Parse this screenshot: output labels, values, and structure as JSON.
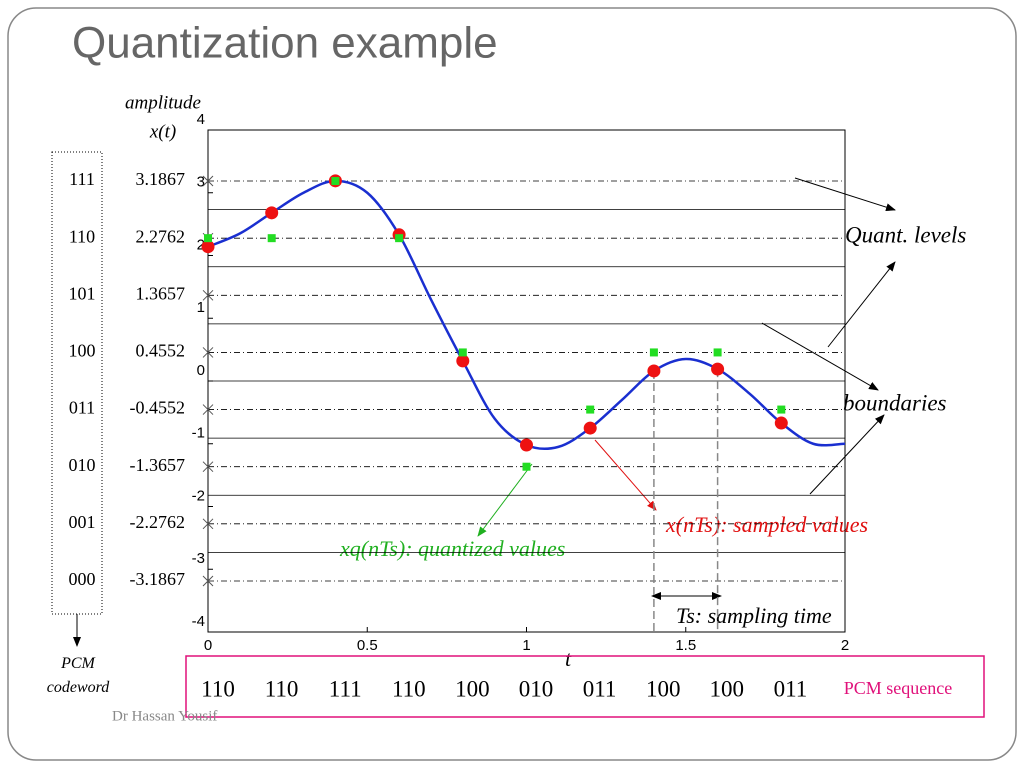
{
  "chart_data": {
    "type": "line",
    "title": "Quantization example",
    "y_label_top": "amplitude",
    "y_label": "x(t)",
    "x_label": "t",
    "xlim": [
      0,
      2
    ],
    "xticks": [
      0,
      0.5,
      1,
      1.5,
      2
    ],
    "ylim": [
      -4,
      4
    ],
    "yticks": [
      -4,
      -3,
      -2,
      -1,
      0,
      1,
      2,
      3,
      4
    ],
    "levels": [
      {
        "code": "111",
        "level": 3.1867
      },
      {
        "code": "110",
        "level": 2.2762
      },
      {
        "code": "101",
        "level": 1.3657
      },
      {
        "code": "100",
        "level": 0.4552
      },
      {
        "code": "011",
        "level": -0.4552
      },
      {
        "code": "010",
        "level": -1.3657
      },
      {
        "code": "001",
        "level": -2.2762
      },
      {
        "code": "000",
        "level": -3.1867
      }
    ],
    "boundaries": [
      2.7314,
      1.8209,
      0.9105,
      0,
      -0.9105,
      -1.8209,
      -2.7314
    ],
    "curve": {
      "color": "#1a2fd0",
      "x": [
        0,
        0.1,
        0.2,
        0.3,
        0.4,
        0.5,
        0.6,
        0.7,
        0.8,
        0.9,
        1.0,
        1.1,
        1.2,
        1.3,
        1.4,
        1.5,
        1.6,
        1.7,
        1.8,
        1.9,
        2.0
      ],
      "values": [
        2.14,
        2.35,
        2.68,
        3.0,
        3.19,
        3.0,
        2.33,
        1.3,
        0.32,
        -0.6,
        -1.02,
        -1.05,
        -0.75,
        -0.3,
        0.16,
        0.35,
        0.19,
        -0.2,
        -0.67,
        -1.0,
        -1.0
      ]
    },
    "samples": {
      "color": "#ee1111",
      "x": [
        0,
        0.2,
        0.4,
        0.6,
        0.8,
        1.0,
        1.2,
        1.4,
        1.6,
        1.8
      ],
      "values": [
        2.14,
        2.68,
        3.19,
        2.33,
        0.32,
        -1.02,
        -0.75,
        0.16,
        0.19,
        -0.67
      ]
    },
    "quantized": {
      "color": "#22dd22",
      "values": [
        2.2762,
        2.2762,
        3.1867,
        2.2762,
        0.4552,
        -1.3657,
        -0.4552,
        0.4552,
        0.4552,
        -0.4552
      ]
    },
    "annotations": {
      "quant_levels": "Quant. levels",
      "boundaries": "boundaries",
      "quantized": "xq(nTs): quantized values",
      "sampled": "x(nTs): sampled values",
      "sampling_time": "Ts: sampling time",
      "pcm_codeword": "PCM codeword",
      "pcm_sequence_label": "PCM sequence"
    },
    "pcm_sequence": [
      "110",
      "110",
      "111",
      "110",
      "100",
      "010",
      "011",
      "100",
      "100",
      "011"
    ],
    "footer": "Dr Hassan Yousif"
  }
}
